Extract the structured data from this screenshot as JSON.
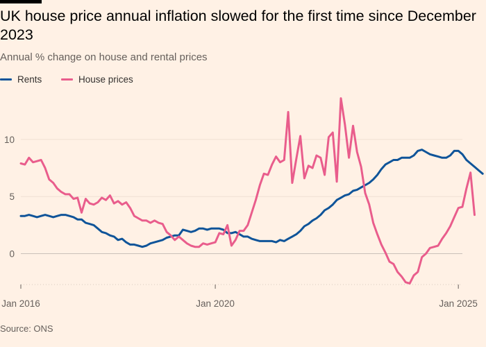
{
  "title": "UK house price annual inflation slowed for the first time since December 2023",
  "subtitle": "Annual % change on house and rental prices",
  "source": "Source: ONS",
  "legend": [
    {
      "label": "Rents",
      "color": "#0f5499"
    },
    {
      "label": "House prices",
      "color": "#e95d8c"
    }
  ],
  "chart_data": {
    "type": "line",
    "xlabel": "",
    "ylabel": "",
    "x_range": [
      "2016-01",
      "2025-02"
    ],
    "x_ticks": [
      {
        "date": "2016-01",
        "label": "Jan 2016"
      },
      {
        "date": "2020-01",
        "label": "Jan 2020"
      },
      {
        "date": "2025-01",
        "label": "Jan 2025"
      }
    ],
    "ylim": [
      -2.7,
      13.7
    ],
    "y_ticks": [
      0,
      5,
      10
    ],
    "grid": true,
    "legend_position": "top-left",
    "series": [
      {
        "name": "Rents",
        "color": "#0f5499",
        "points": [
          [
            "2016-01",
            3.3
          ],
          [
            "2016-02",
            3.3
          ],
          [
            "2016-03",
            3.4
          ],
          [
            "2016-04",
            3.3
          ],
          [
            "2016-05",
            3.2
          ],
          [
            "2016-06",
            3.3
          ],
          [
            "2016-07",
            3.4
          ],
          [
            "2016-08",
            3.3
          ],
          [
            "2016-09",
            3.2
          ],
          [
            "2016-10",
            3.3
          ],
          [
            "2016-11",
            3.4
          ],
          [
            "2016-12",
            3.4
          ],
          [
            "2017-01",
            3.3
          ],
          [
            "2017-02",
            3.2
          ],
          [
            "2017-03",
            3.0
          ],
          [
            "2017-04",
            3.0
          ],
          [
            "2017-05",
            2.7
          ],
          [
            "2017-06",
            2.6
          ],
          [
            "2017-07",
            2.5
          ],
          [
            "2017-08",
            2.2
          ],
          [
            "2017-09",
            1.9
          ],
          [
            "2017-10",
            1.8
          ],
          [
            "2017-11",
            1.6
          ],
          [
            "2017-12",
            1.5
          ],
          [
            "2018-01",
            1.2
          ],
          [
            "2018-02",
            1.3
          ],
          [
            "2018-03",
            1.0
          ],
          [
            "2018-04",
            0.8
          ],
          [
            "2018-05",
            0.8
          ],
          [
            "2018-06",
            0.7
          ],
          [
            "2018-07",
            0.6
          ],
          [
            "2018-08",
            0.7
          ],
          [
            "2018-09",
            0.9
          ],
          [
            "2018-10",
            1.0
          ],
          [
            "2018-11",
            1.1
          ],
          [
            "2018-12",
            1.2
          ],
          [
            "2019-01",
            1.4
          ],
          [
            "2019-02",
            1.5
          ],
          [
            "2019-03",
            1.6
          ],
          [
            "2019-04",
            1.6
          ],
          [
            "2019-05",
            2.1
          ],
          [
            "2019-06",
            2.0
          ],
          [
            "2019-07",
            1.9
          ],
          [
            "2019-08",
            2.0
          ],
          [
            "2019-09",
            2.2
          ],
          [
            "2019-10",
            2.2
          ],
          [
            "2019-11",
            2.1
          ],
          [
            "2019-12",
            2.2
          ],
          [
            "2020-01",
            2.2
          ],
          [
            "2020-02",
            2.2
          ],
          [
            "2020-03",
            2.1
          ],
          [
            "2020-04",
            1.8
          ],
          [
            "2020-05",
            1.8
          ],
          [
            "2020-06",
            1.9
          ],
          [
            "2020-07",
            1.7
          ],
          [
            "2020-08",
            1.5
          ],
          [
            "2020-09",
            1.5
          ],
          [
            "2020-10",
            1.3
          ],
          [
            "2020-11",
            1.2
          ],
          [
            "2020-12",
            1.1
          ],
          [
            "2021-01",
            1.1
          ],
          [
            "2021-02",
            1.1
          ],
          [
            "2021-03",
            1.1
          ],
          [
            "2021-04",
            1.0
          ],
          [
            "2021-05",
            1.2
          ],
          [
            "2021-06",
            1.1
          ],
          [
            "2021-07",
            1.3
          ],
          [
            "2021-08",
            1.5
          ],
          [
            "2021-09",
            1.7
          ],
          [
            "2021-10",
            2.0
          ],
          [
            "2021-11",
            2.4
          ],
          [
            "2021-12",
            2.6
          ],
          [
            "2022-01",
            2.9
          ],
          [
            "2022-02",
            3.1
          ],
          [
            "2022-03",
            3.4
          ],
          [
            "2022-04",
            3.8
          ],
          [
            "2022-05",
            4.0
          ],
          [
            "2022-06",
            4.3
          ],
          [
            "2022-07",
            4.7
          ],
          [
            "2022-08",
            4.9
          ],
          [
            "2022-09",
            5.1
          ],
          [
            "2022-10",
            5.2
          ],
          [
            "2022-11",
            5.5
          ],
          [
            "2022-12",
            5.6
          ],
          [
            "2023-01",
            5.8
          ],
          [
            "2023-02",
            6.0
          ],
          [
            "2023-03",
            6.2
          ],
          [
            "2023-04",
            6.5
          ],
          [
            "2023-05",
            6.9
          ],
          [
            "2023-06",
            7.4
          ],
          [
            "2023-07",
            7.8
          ],
          [
            "2023-08",
            8.0
          ],
          [
            "2023-09",
            8.2
          ],
          [
            "2023-10",
            8.2
          ],
          [
            "2023-11",
            8.4
          ],
          [
            "2023-12",
            8.4
          ],
          [
            "2024-01",
            8.4
          ],
          [
            "2024-02",
            8.6
          ],
          [
            "2024-03",
            9.0
          ],
          [
            "2024-04",
            9.1
          ],
          [
            "2024-05",
            8.9
          ],
          [
            "2024-06",
            8.7
          ],
          [
            "2024-07",
            8.6
          ],
          [
            "2024-08",
            8.5
          ],
          [
            "2024-09",
            8.4
          ],
          [
            "2024-10",
            8.4
          ],
          [
            "2024-11",
            8.6
          ],
          [
            "2024-12",
            9.0
          ],
          [
            "2025-01",
            9.0
          ],
          [
            "2025-02",
            8.7
          ],
          [
            "2025-03",
            8.2
          ],
          [
            "2025-04",
            7.9
          ],
          [
            "2025-05",
            7.6
          ],
          [
            "2025-06",
            7.3
          ],
          [
            "2025-07",
            7.0
          ]
        ]
      },
      {
        "name": "House prices",
        "color": "#e95d8c",
        "points": [
          [
            "2016-01",
            7.9
          ],
          [
            "2016-02",
            7.8
          ],
          [
            "2016-03",
            8.4
          ],
          [
            "2016-04",
            8.0
          ],
          [
            "2016-05",
            8.1
          ],
          [
            "2016-06",
            8.2
          ],
          [
            "2016-07",
            7.5
          ],
          [
            "2016-08",
            6.5
          ],
          [
            "2016-09",
            6.2
          ],
          [
            "2016-10",
            5.7
          ],
          [
            "2016-11",
            5.4
          ],
          [
            "2016-12",
            5.2
          ],
          [
            "2017-01",
            5.2
          ],
          [
            "2017-02",
            4.8
          ],
          [
            "2017-03",
            4.9
          ],
          [
            "2017-04",
            3.6
          ],
          [
            "2017-05",
            4.8
          ],
          [
            "2017-06",
            4.4
          ],
          [
            "2017-07",
            4.3
          ],
          [
            "2017-08",
            4.5
          ],
          [
            "2017-09",
            4.9
          ],
          [
            "2017-10",
            4.7
          ],
          [
            "2017-11",
            5.1
          ],
          [
            "2017-12",
            4.4
          ],
          [
            "2018-01",
            4.6
          ],
          [
            "2018-02",
            4.3
          ],
          [
            "2018-03",
            4.5
          ],
          [
            "2018-04",
            4.0
          ],
          [
            "2018-05",
            3.3
          ],
          [
            "2018-06",
            3.1
          ],
          [
            "2018-07",
            2.9
          ],
          [
            "2018-08",
            2.9
          ],
          [
            "2018-09",
            2.7
          ],
          [
            "2018-10",
            2.9
          ],
          [
            "2018-11",
            2.7
          ],
          [
            "2018-12",
            2.6
          ],
          [
            "2019-01",
            1.9
          ],
          [
            "2019-02",
            1.6
          ],
          [
            "2019-03",
            1.2
          ],
          [
            "2019-04",
            1.5
          ],
          [
            "2019-05",
            1.2
          ],
          [
            "2019-06",
            0.9
          ],
          [
            "2019-07",
            0.7
          ],
          [
            "2019-08",
            0.6
          ],
          [
            "2019-09",
            0.6
          ],
          [
            "2019-10",
            0.9
          ],
          [
            "2019-11",
            0.8
          ],
          [
            "2019-12",
            0.9
          ],
          [
            "2020-01",
            1.0
          ],
          [
            "2020-02",
            1.8
          ],
          [
            "2020-03",
            1.7
          ],
          [
            "2020-04",
            2.5
          ],
          [
            "2020-05",
            0.7
          ],
          [
            "2020-06",
            1.2
          ],
          [
            "2020-07",
            2.0
          ],
          [
            "2020-08",
            2.0
          ],
          [
            "2020-09",
            2.5
          ],
          [
            "2020-10",
            3.6
          ],
          [
            "2020-11",
            4.7
          ],
          [
            "2020-12",
            6.0
          ],
          [
            "2021-01",
            7.0
          ],
          [
            "2021-02",
            6.9
          ],
          [
            "2021-03",
            7.8
          ],
          [
            "2021-04",
            8.5
          ],
          [
            "2021-05",
            8.0
          ],
          [
            "2021-06",
            8.2
          ],
          [
            "2021-07",
            12.4
          ],
          [
            "2021-08",
            6.2
          ],
          [
            "2021-09",
            8.3
          ],
          [
            "2021-10",
            10.3
          ],
          [
            "2021-11",
            6.6
          ],
          [
            "2021-12",
            7.7
          ],
          [
            "2022-01",
            7.5
          ],
          [
            "2022-02",
            8.6
          ],
          [
            "2022-03",
            8.4
          ],
          [
            "2022-04",
            6.9
          ],
          [
            "2022-05",
            10.2
          ],
          [
            "2022-06",
            10.6
          ],
          [
            "2022-07",
            6.3
          ],
          [
            "2022-08",
            13.6
          ],
          [
            "2022-09",
            11.3
          ],
          [
            "2022-10",
            8.4
          ],
          [
            "2022-11",
            11.2
          ],
          [
            "2022-12",
            8.9
          ],
          [
            "2023-01",
            7.6
          ],
          [
            "2023-02",
            5.3
          ],
          [
            "2023-03",
            4.3
          ],
          [
            "2023-04",
            2.7
          ],
          [
            "2023-05",
            1.7
          ],
          [
            "2023-06",
            0.8
          ],
          [
            "2023-07",
            0.1
          ],
          [
            "2023-08",
            -0.7
          ],
          [
            "2023-09",
            -0.9
          ],
          [
            "2023-10",
            -1.6
          ],
          [
            "2023-11",
            -2.0
          ],
          [
            "2023-12",
            -2.5
          ],
          [
            "2024-01",
            -2.6
          ],
          [
            "2024-02",
            -1.9
          ],
          [
            "2024-03",
            -1.6
          ],
          [
            "2024-04",
            -0.3
          ],
          [
            "2024-05",
            0.0
          ],
          [
            "2024-06",
            0.5
          ],
          [
            "2024-07",
            0.6
          ],
          [
            "2024-08",
            0.7
          ],
          [
            "2024-09",
            1.3
          ],
          [
            "2024-10",
            1.8
          ],
          [
            "2024-11",
            2.4
          ],
          [
            "2024-12",
            3.2
          ],
          [
            "2025-01",
            4.0
          ],
          [
            "2025-02",
            4.1
          ],
          [
            "2025-03",
            5.7
          ],
          [
            "2025-04",
            7.1
          ],
          [
            "2025-05",
            3.4
          ]
        ]
      }
    ]
  }
}
